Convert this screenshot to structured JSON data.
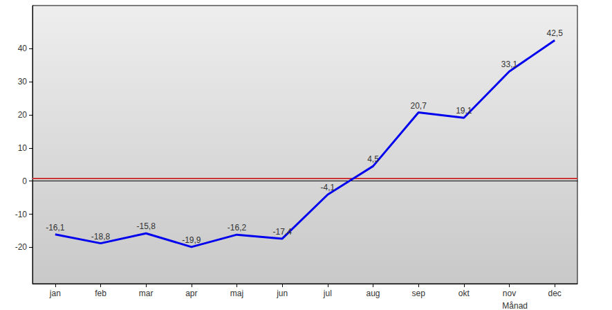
{
  "chart_data": {
    "type": "line",
    "x_label": "Månad",
    "categories": [
      "jan",
      "feb",
      "mar",
      "apr",
      "maj",
      "jun",
      "jul",
      "aug",
      "sep",
      "okt",
      "nov",
      "dec"
    ],
    "values": [
      -16.1,
      -18.8,
      -15.8,
      -19.9,
      -16.2,
      -17.4,
      -4.1,
      4.5,
      20.7,
      19.1,
      33.1,
      42.5
    ],
    "value_labels": [
      "-16,1",
      "-18,8",
      "-15,8",
      "-19,9",
      "-16,2",
      "-17,4",
      "-4,1",
      "4,5",
      "20,7",
      "19,1",
      "33,1",
      "42,5"
    ],
    "color": "#0000ee",
    "reference_line": 0.8,
    "reference_color": "#cc3333",
    "ylim": [
      -31,
      53
    ],
    "yticks": [
      -20,
      -10,
      0,
      10,
      20,
      30,
      40
    ],
    "data_labels": true,
    "grid": false
  }
}
